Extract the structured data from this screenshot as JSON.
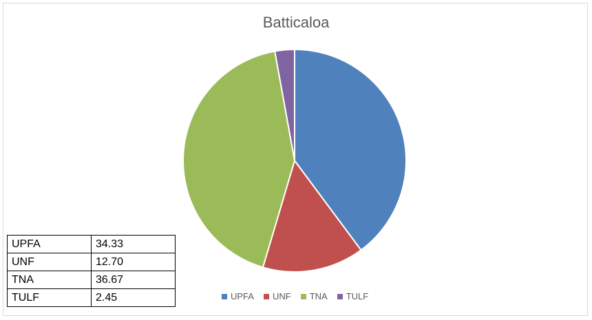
{
  "chart_data": {
    "type": "pie",
    "title": "Batticaloa",
    "categories": [
      "UPFA",
      "UNF",
      "TNA",
      "TULF"
    ],
    "values": [
      34.33,
      12.7,
      36.67,
      2.45
    ],
    "value_labels": [
      "34.33",
      "12.70",
      "36.67",
      "2.45"
    ],
    "colors": [
      "#4f81bd",
      "#c0504d",
      "#9bbb59",
      "#8064a2"
    ],
    "legend_position": "bottom"
  }
}
